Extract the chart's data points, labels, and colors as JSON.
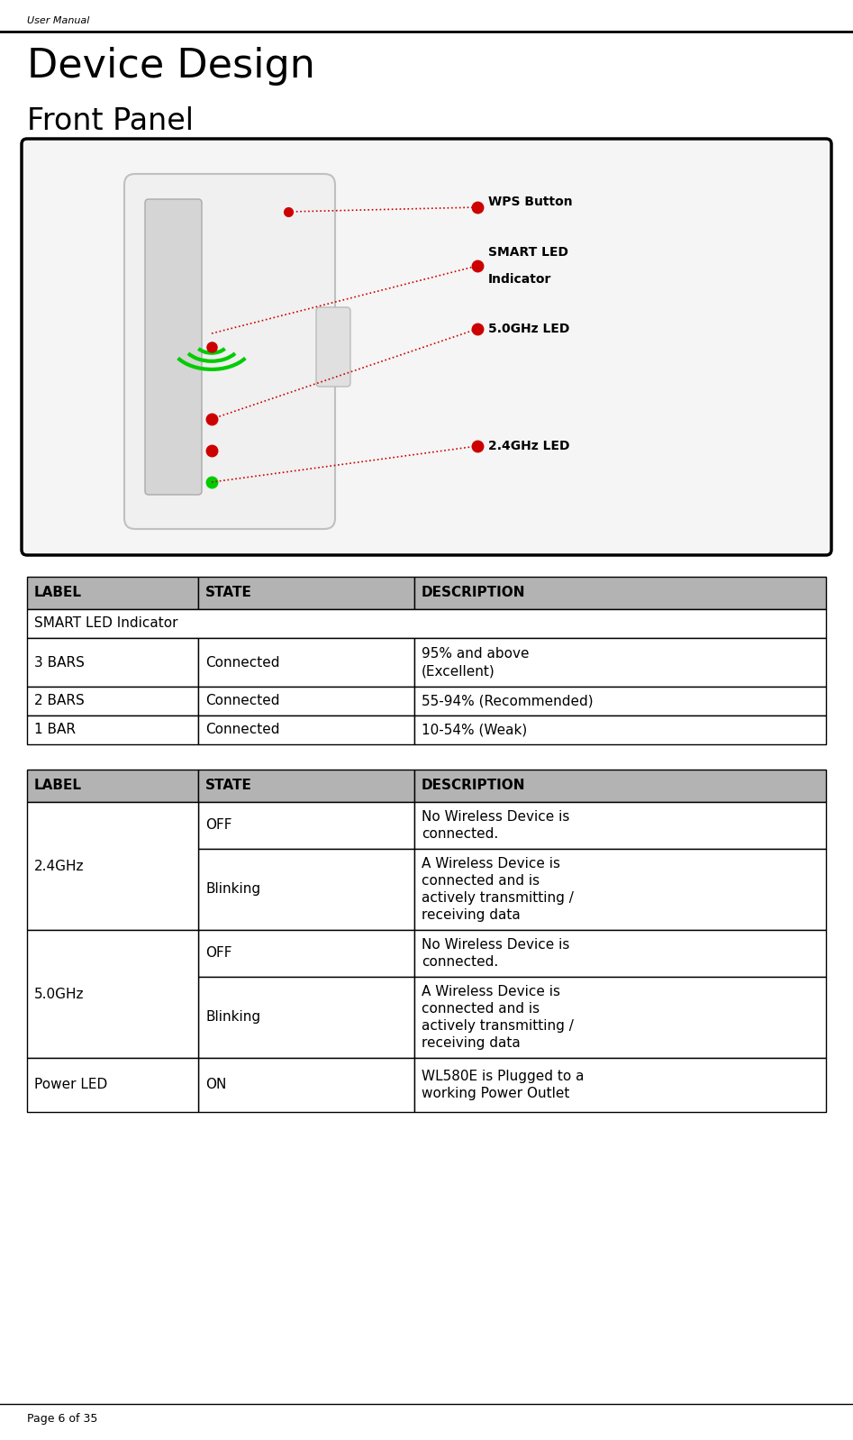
{
  "page_header": "User Manual",
  "title": "Device Design",
  "subtitle": "Front Panel",
  "footer": "Page 6 of 35",
  "table1_header": [
    "LABEL",
    "STATE",
    "DESCRIPTION"
  ],
  "table1_subheader": "SMART LED Indicator",
  "table1_rows": [
    [
      "3 BARS",
      "Connected",
      "95% and above\n(Excellent)"
    ],
    [
      "2 BARS",
      "Connected",
      "55-94% (Recommended)"
    ],
    [
      "1 BAR",
      "Connected",
      "10-54% (Weak)"
    ]
  ],
  "table2_header": [
    "LABEL",
    "STATE",
    "DESCRIPTION"
  ],
  "table2_rows": [
    [
      "2.4GHz",
      "OFF",
      "No Wireless Device is\nconnected."
    ],
    [
      "2.4GHz",
      "Blinking",
      "A Wireless Device is\nconnected and is\nactively transmitting /\nreceiving data"
    ],
    [
      "5.0GHz",
      "OFF",
      "No Wireless Device is\nconnected."
    ],
    [
      "5.0GHz",
      "Blinking",
      "A Wireless Device is\nconnected and is\nactively transmitting /\nreceiving data"
    ],
    [
      "Power LED",
      "ON",
      "WL580E is Plugged to a\nworking Power Outlet"
    ]
  ],
  "header_bg": "#b3b3b3",
  "white": "#ffffff",
  "black": "#000000",
  "red": "#cc0000",
  "green": "#00cc00",
  "title_fontsize": 32,
  "subtitle_fontsize": 24,
  "body_fontsize": 11,
  "header_fontsize": 11
}
